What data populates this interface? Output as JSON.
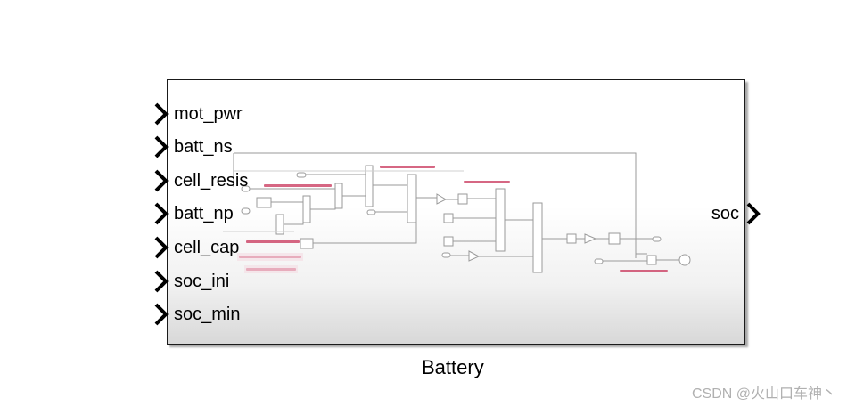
{
  "block": {
    "name": "Battery",
    "inputs": [
      "mot_pwr",
      "batt_ns",
      "cell_resis",
      "batt_np",
      "cell_cap",
      "soc_ini",
      "soc_min"
    ],
    "outputs": [
      "soc"
    ]
  },
  "watermark": "CSDN @火山口车神丶",
  "colors": {
    "border": "#1a1a1a",
    "port_arrow": "#000000",
    "inner_line": "#9a9a9a",
    "annotation": "#c8345a"
  }
}
